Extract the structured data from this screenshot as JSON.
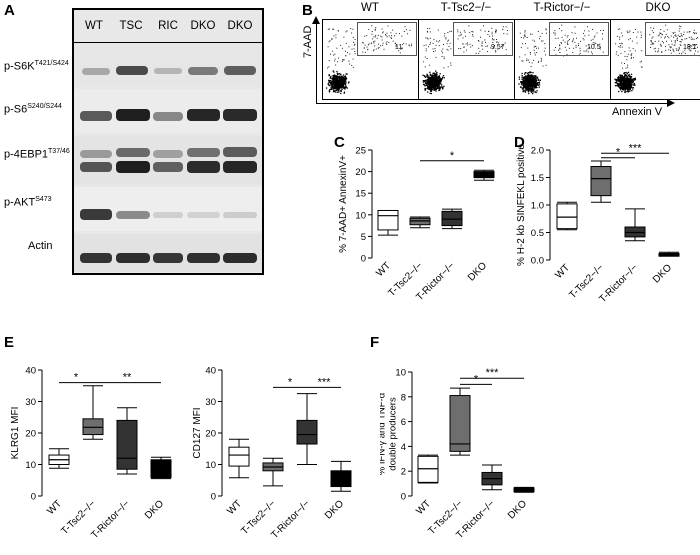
{
  "panel_letters": {
    "a": "A",
    "b": "B",
    "c": "C",
    "d": "D",
    "e": "E",
    "f": "F"
  },
  "blot": {
    "lanes": [
      "WT",
      "TSC",
      "RIC",
      "DKO",
      "DKO"
    ],
    "rows": [
      {
        "name": "p-S6K",
        "sup": "T421/S424"
      },
      {
        "name": "p-S6",
        "sup": "S240/S244"
      },
      {
        "name": "p-4EBP1",
        "sup": "T37/46"
      },
      {
        "name": "p-AKT",
        "sup": "S473"
      },
      {
        "name": "Actin",
        "sup": ""
      }
    ]
  },
  "flow": {
    "y_label": "7-AAD",
    "x_label": "Annexin V",
    "panels": [
      {
        "title": "WT",
        "value": "11"
      },
      {
        "title": "T-Tsc2−/−",
        "value": "9.57"
      },
      {
        "title": "T-Rictor−/−",
        "value": "10.5"
      },
      {
        "title": "DKO",
        "value": "18.1"
      }
    ]
  },
  "chart_data": [
    {
      "panel": "C",
      "type": "box",
      "ylabel": "% 7-AAD+ AnnexinV+",
      "ylim": [
        0,
        25
      ],
      "yticks": [
        0,
        5,
        10,
        15,
        20,
        25
      ],
      "categories": [
        "WT",
        "T-Tsc2−/−",
        "T-Rictor−/−",
        "DKO"
      ],
      "boxes": [
        {
          "min": 5.3,
          "q1": 6.5,
          "median": 9.8,
          "q3": 11.0,
          "max": 11.0,
          "fill": "#ffffff"
        },
        {
          "min": 7.0,
          "q1": 7.7,
          "median": 8.6,
          "q3": 9.2,
          "max": 9.5,
          "fill": "#6e6e6e"
        },
        {
          "min": 6.8,
          "q1": 7.5,
          "median": 9.0,
          "q3": 10.8,
          "max": 11.3,
          "fill": "#333333"
        },
        {
          "min": 18.0,
          "q1": 18.6,
          "median": 19.5,
          "q3": 20.0,
          "max": 20.3,
          "fill": "#000000"
        }
      ],
      "significance": [
        {
          "from": 1,
          "to": 3,
          "label": "*",
          "y": 22.5
        }
      ]
    },
    {
      "panel": "D",
      "type": "box",
      "ylabel": "% H-2 kb SINFEKL positive",
      "ylim": [
        0,
        2.0
      ],
      "yticks": [
        0.0,
        0.5,
        1.0,
        1.5,
        2.0
      ],
      "categories": [
        "WT",
        "T-Tsc2−/−",
        "T-Rictor−/−",
        "DKO"
      ],
      "boxes": [
        {
          "min": 0.55,
          "q1": 0.57,
          "median": 0.78,
          "q3": 1.02,
          "max": 1.05,
          "fill": "#ffffff"
        },
        {
          "min": 1.05,
          "q1": 1.17,
          "median": 1.48,
          "q3": 1.7,
          "max": 1.8,
          "fill": "#6e6e6e"
        },
        {
          "min": 0.35,
          "q1": 0.42,
          "median": 0.5,
          "q3": 0.6,
          "max": 0.93,
          "fill": "#333333"
        },
        {
          "min": 0.07,
          "q1": 0.07,
          "median": 0.1,
          "q3": 0.12,
          "max": 0.14,
          "fill": "#000000"
        }
      ],
      "significance": [
        {
          "from": 1,
          "to": 2,
          "label": "*",
          "y": 1.86
        },
        {
          "from": 1,
          "to": 3,
          "label": "***",
          "y": 1.94
        }
      ]
    },
    {
      "panel": "E1",
      "type": "box",
      "ylabel": "KLRG1 MFI",
      "ylim": [
        0,
        40
      ],
      "yticks": [
        0,
        10,
        20,
        30,
        40
      ],
      "categories": [
        "WT",
        "T-Tsc2−/−",
        "T-Rictor−/−",
        "DKO"
      ],
      "boxes": [
        {
          "min": 8.8,
          "q1": 10.0,
          "median": 11.5,
          "q3": 13.0,
          "max": 15.0,
          "fill": "#ffffff"
        },
        {
          "min": 18.0,
          "q1": 19.5,
          "median": 21.8,
          "q3": 24.5,
          "max": 35.0,
          "fill": "#6e6e6e"
        },
        {
          "min": 7.0,
          "q1": 8.5,
          "median": 12.0,
          "q3": 24.0,
          "max": 28.0,
          "fill": "#333333"
        },
        {
          "min": 5.5,
          "q1": 5.8,
          "median": 10.0,
          "q3": 11.5,
          "max": 12.3,
          "fill": "#000000"
        }
      ],
      "significance": [
        {
          "from": 0,
          "to": 1,
          "label": "*",
          "y": 36.0
        },
        {
          "from": 1,
          "to": 3,
          "label": "**",
          "y": 36.0
        }
      ]
    },
    {
      "panel": "E2",
      "type": "box",
      "ylabel": "CD127 MFI",
      "ylim": [
        0,
        40
      ],
      "yticks": [
        0,
        10,
        20,
        30,
        40
      ],
      "categories": [
        "WT",
        "T-Tsc2−/−",
        "T-Rictor−/−",
        "DKO"
      ],
      "boxes": [
        {
          "min": 5.8,
          "q1": 9.5,
          "median": 13.0,
          "q3": 15.5,
          "max": 18.0,
          "fill": "#ffffff"
        },
        {
          "min": 3.2,
          "q1": 8.0,
          "median": 9.2,
          "q3": 10.5,
          "max": 12.0,
          "fill": "#6e6e6e"
        },
        {
          "min": 10.0,
          "q1": 16.5,
          "median": 19.5,
          "q3": 24.0,
          "max": 32.5,
          "fill": "#333333"
        },
        {
          "min": 1.5,
          "q1": 3.0,
          "median": 4.5,
          "q3": 8.0,
          "max": 11.0,
          "fill": "#000000"
        }
      ],
      "significance": [
        {
          "from": 1,
          "to": 2,
          "label": "*",
          "y": 34.5
        },
        {
          "from": 2,
          "to": 3,
          "label": "***",
          "y": 34.5
        }
      ]
    },
    {
      "panel": "F",
      "type": "box",
      "ylabel": "% IFN-γ and TNF-α double producers",
      "ylim": [
        0,
        10
      ],
      "yticks": [
        0,
        2,
        4,
        6,
        8,
        10
      ],
      "categories": [
        "WT",
        "T-Tsc2−/−",
        "T-Rictor−/−",
        "DKO"
      ],
      "boxes": [
        {
          "min": 1.05,
          "q1": 1.1,
          "median": 2.2,
          "q3": 3.2,
          "max": 3.3,
          "fill": "#ffffff"
        },
        {
          "min": 3.3,
          "q1": 3.6,
          "median": 4.2,
          "q3": 8.1,
          "max": 8.7,
          "fill": "#6e6e6e"
        },
        {
          "min": 0.5,
          "q1": 0.9,
          "median": 1.4,
          "q3": 1.9,
          "max": 2.5,
          "fill": "#333333"
        },
        {
          "min": 0.3,
          "q1": 0.35,
          "median": 0.5,
          "q3": 0.65,
          "max": 0.7,
          "fill": "#000000"
        }
      ],
      "significance": [
        {
          "from": 1,
          "to": 2,
          "label": "*",
          "y": 9.0
        },
        {
          "from": 1,
          "to": 3,
          "label": "***",
          "y": 9.5
        }
      ]
    }
  ]
}
